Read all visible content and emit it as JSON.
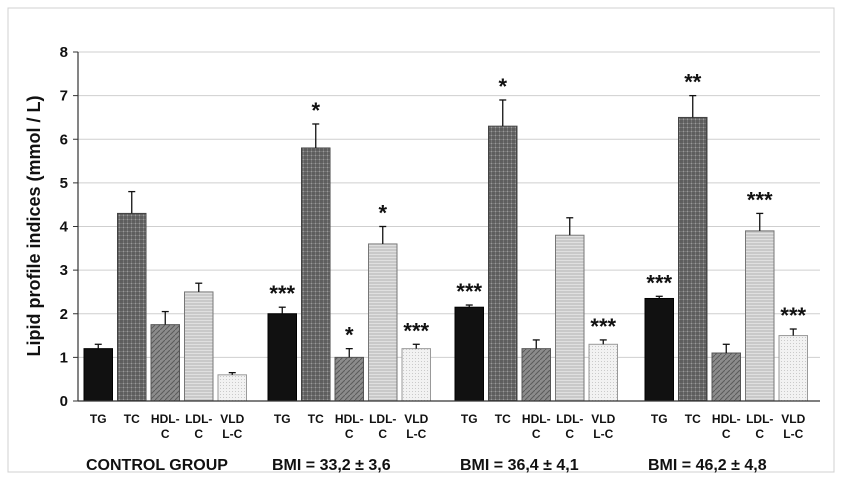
{
  "chart_data": {
    "type": "bar",
    "title": "",
    "ylabel": "Lipid profile indices (mmol / L)",
    "xlabel": "",
    "ylim": [
      0,
      8
    ],
    "yticks": [
      "0",
      "1",
      "2",
      "3",
      "4",
      "5",
      "6",
      "7",
      "8"
    ],
    "grid": "horizontal",
    "bar_labels": [
      {
        "line1": "TG",
        "line2": ""
      },
      {
        "line1": "TC",
        "line2": ""
      },
      {
        "line1": "HDL-",
        "line2": "C"
      },
      {
        "line1": "LDL-",
        "line2": "C"
      },
      {
        "line1": "VLD",
        "line2": "L-C"
      }
    ],
    "group_labels": [
      "CONTROL GROUP",
      "BMI = 33,2 ± 3,6",
      "BMI = 36,4 ± 4,1",
      "BMI = 46,2 ± 4,8"
    ],
    "series_colors": [
      "#111111",
      "#8a8a8a",
      "#7a7a7a",
      "#d4d4d4",
      "#ececec"
    ],
    "groups": [
      {
        "label": "CONTROL GROUP",
        "values": [
          1.2,
          4.3,
          1.75,
          2.5,
          0.6
        ],
        "errors": [
          0.1,
          0.5,
          0.3,
          0.2,
          0.05
        ],
        "marks": [
          "",
          "",
          "",
          "",
          ""
        ]
      },
      {
        "label": "BMI = 33,2 ± 3,6",
        "values": [
          2.0,
          5.8,
          1.0,
          3.6,
          1.2
        ],
        "errors": [
          0.15,
          0.55,
          0.2,
          0.4,
          0.1
        ],
        "marks": [
          "***",
          "*",
          "*",
          "*",
          "***"
        ]
      },
      {
        "label": "BMI = 36,4 ± 4,1",
        "values": [
          2.15,
          6.3,
          1.2,
          3.8,
          1.3
        ],
        "errors": [
          0.05,
          0.6,
          0.2,
          0.4,
          0.1
        ],
        "marks": [
          "***",
          "*",
          "",
          "",
          "***"
        ]
      },
      {
        "label": "BMI = 46,2 ± 4,8",
        "values": [
          2.35,
          6.5,
          1.1,
          3.9,
          1.5
        ],
        "errors": [
          0.05,
          0.5,
          0.2,
          0.4,
          0.15
        ],
        "marks": [
          "***",
          "**",
          "",
          "***",
          "***"
        ]
      }
    ]
  }
}
